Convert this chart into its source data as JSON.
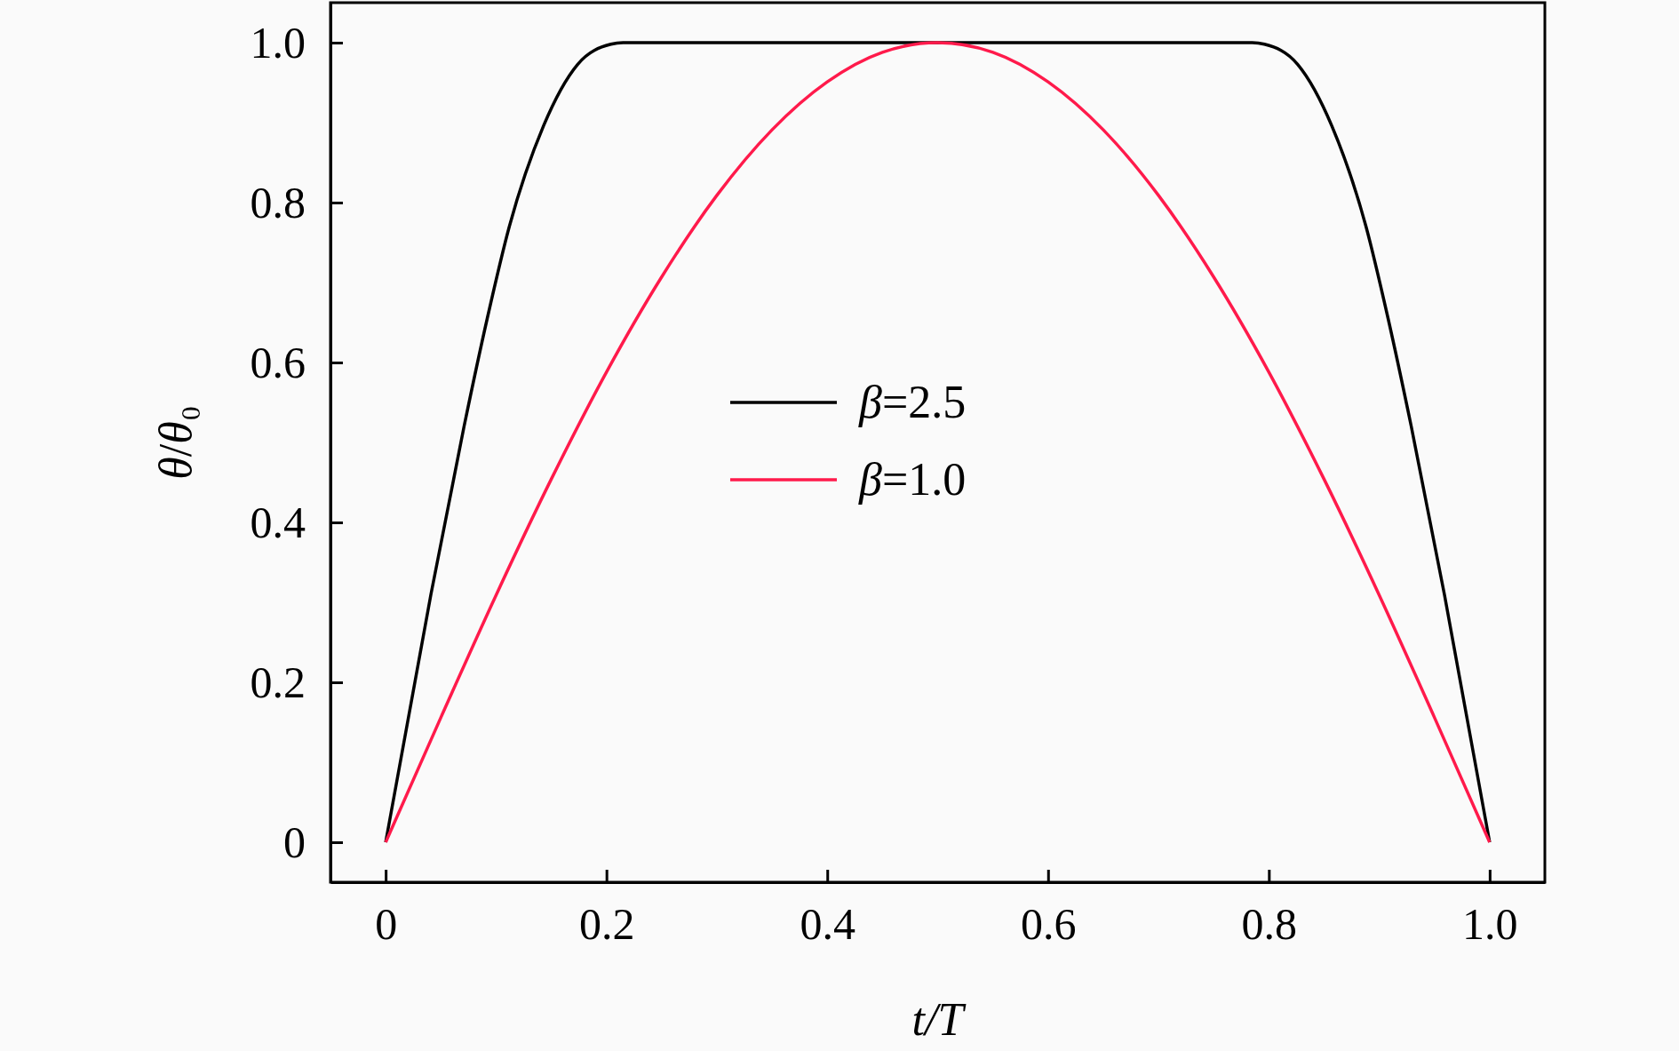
{
  "chart_data": {
    "type": "line",
    "xlabel": "t/T",
    "ylabel": "θ/θ₀",
    "xlim": [
      -0.05,
      1.05
    ],
    "ylim": [
      -0.05,
      1.05
    ],
    "xticks": [
      0,
      0.2,
      0.4,
      0.6,
      0.8,
      {
        "value": 1,
        "label": "1.0"
      }
    ],
    "yticks": [
      0,
      0.2,
      0.4,
      0.6,
      0.8,
      {
        "value": 1,
        "label": "1.0"
      }
    ],
    "grid": false,
    "legend": "center",
    "marker": "none",
    "line_style": "solid",
    "series": [
      {
        "name": "β=2.5",
        "color": "#000000",
        "x": [
          0,
          0.041,
          0.071,
          0.092,
          0.112,
          0.143,
          0.174,
          0.204,
          0.215,
          0.785,
          0.796,
          0.826,
          0.857,
          0.888,
          0.908,
          0.929,
          0.959,
          1
        ],
        "values": [
          0,
          0.31,
          0.52,
          0.655,
          0.77,
          0.896,
          0.973,
          0.998,
          1,
          1,
          0.998,
          0.973,
          0.896,
          0.77,
          0.655,
          0.52,
          0.31,
          0
        ]
      },
      {
        "name": "β=1.0",
        "color": "#ff1a4b",
        "x": [
          0,
          0.05,
          0.1,
          0.15,
          0.2,
          0.25,
          0.3,
          0.35,
          0.4,
          0.45,
          0.5,
          0.55,
          0.6,
          0.65,
          0.7,
          0.75,
          0.8,
          0.85,
          0.9,
          0.95,
          1
        ],
        "values": [
          0,
          0.156,
          0.309,
          0.454,
          0.588,
          0.707,
          0.809,
          0.891,
          0.951,
          0.988,
          1,
          0.988,
          0.951,
          0.891,
          0.809,
          0.707,
          0.588,
          0.454,
          0.309,
          0.156,
          0
        ]
      }
    ]
  }
}
